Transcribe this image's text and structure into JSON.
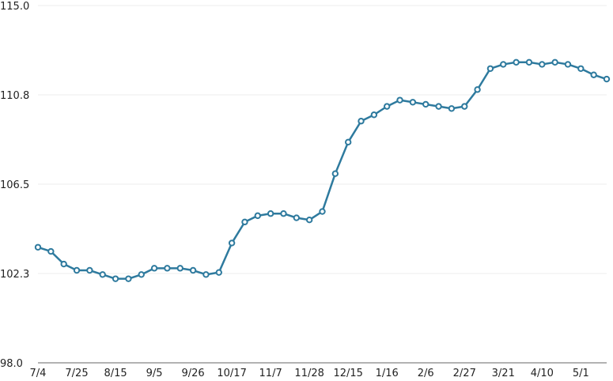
{
  "chart_data": {
    "type": "line",
    "title": "",
    "xlabel": "",
    "ylabel": "",
    "ylim": [
      98.0,
      115.0
    ],
    "yticks": [
      "98.0",
      "102.3",
      "106.5",
      "110.8",
      "115.0"
    ],
    "ytick_values": [
      98.0,
      102.25,
      106.5,
      110.75,
      115.0
    ],
    "xtick_labels": [
      "7/4",
      "7/25",
      "8/15",
      "9/5",
      "9/26",
      "10/17",
      "11/7",
      "11/28",
      "12/15",
      "1/16",
      "2/6",
      "2/27",
      "3/21",
      "4/10",
      "5/1"
    ],
    "xtick_every": 3,
    "grid": "horizontal",
    "color": "#2e7a9e",
    "series": [
      {
        "values": [
          103.5,
          103.3,
          102.7,
          102.4,
          102.4,
          102.2,
          102.0,
          102.0,
          102.2,
          102.5,
          102.5,
          102.5,
          102.4,
          102.2,
          102.3,
          103.7,
          104.7,
          105.0,
          105.1,
          105.1,
          104.9,
          104.8,
          105.2,
          107.0,
          108.5,
          109.5,
          109.8,
          110.2,
          110.5,
          110.4,
          110.3,
          110.2,
          110.1,
          110.2,
          111.0,
          112.0,
          112.2,
          112.3,
          112.3,
          112.2,
          112.3,
          112.2,
          112.0,
          111.7,
          111.5
        ]
      }
    ]
  }
}
